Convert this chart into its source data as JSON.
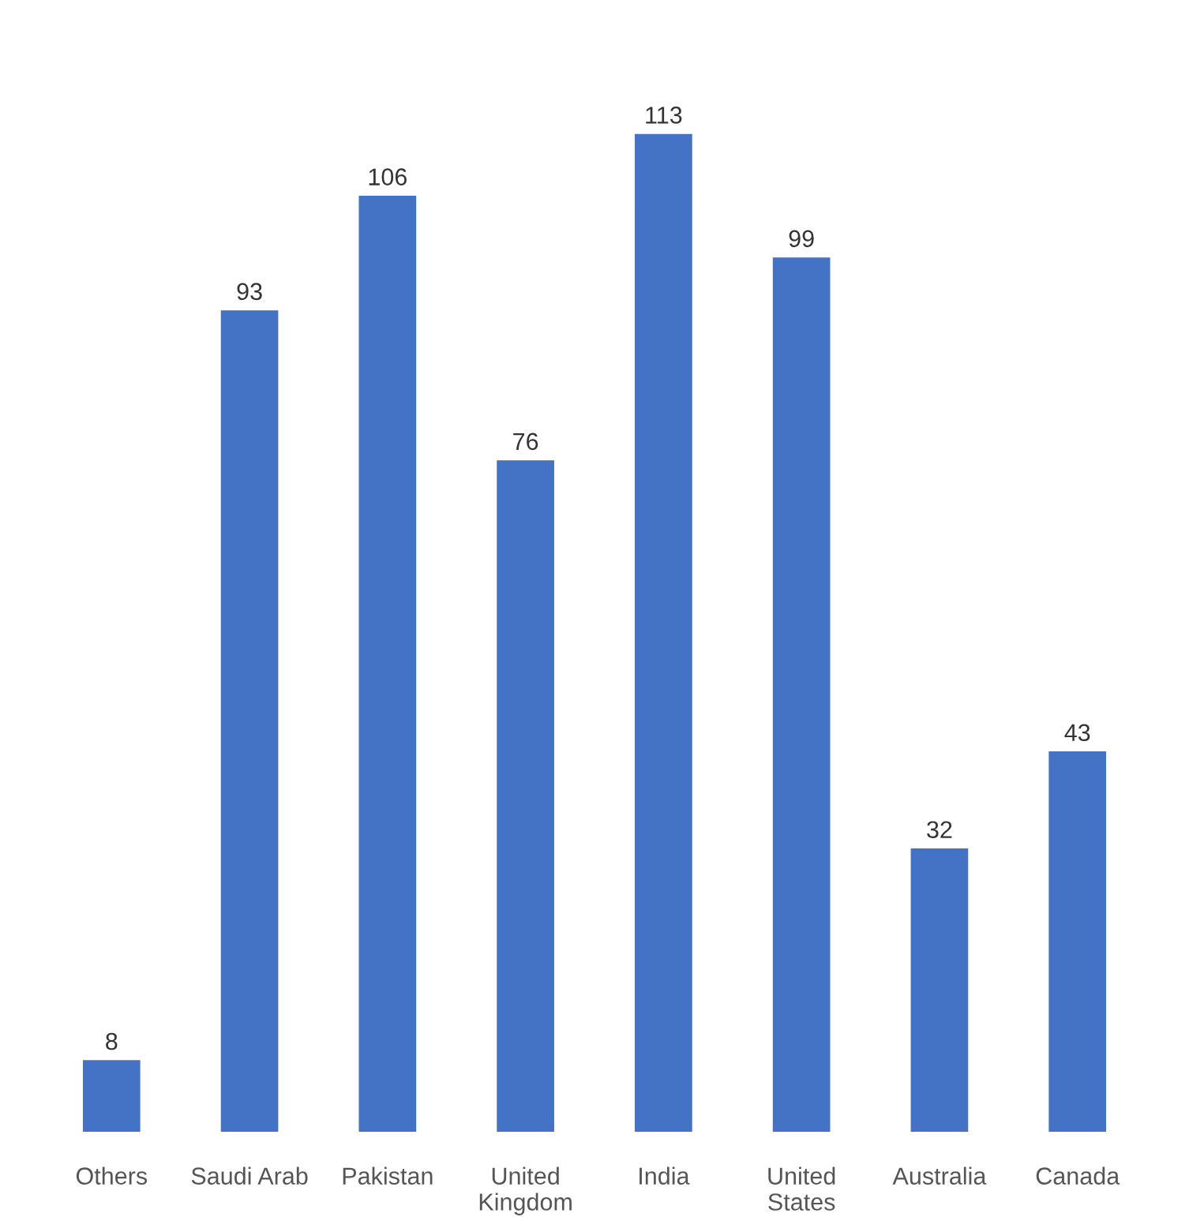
{
  "chart_data": {
    "type": "bar",
    "categories": [
      "Others",
      "Saudi Arab",
      "Pakistan",
      "United\nKingdom",
      "India",
      "United\nStates",
      "Australia",
      "Canada"
    ],
    "values": [
      8,
      93,
      106,
      76,
      113,
      99,
      32,
      43
    ],
    "color": "#4472c4",
    "data_labels": true
  }
}
